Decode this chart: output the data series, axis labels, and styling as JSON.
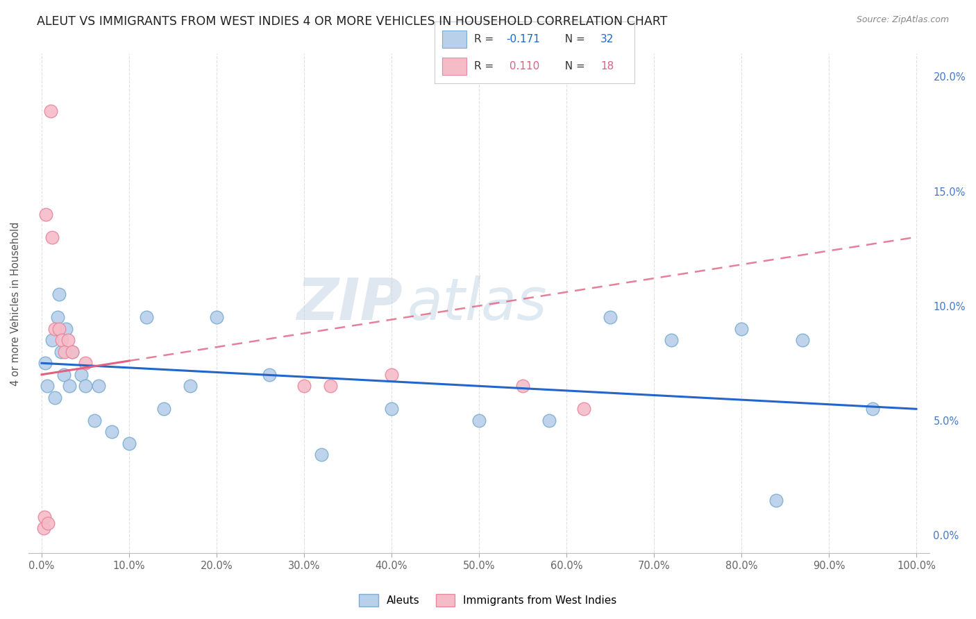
{
  "title": "ALEUT VS IMMIGRANTS FROM WEST INDIES 4 OR MORE VEHICLES IN HOUSEHOLD CORRELATION CHART",
  "source": "Source: ZipAtlas.com",
  "ylabel": "4 or more Vehicles in Household",
  "xlim": [
    0,
    100
  ],
  "ylim": [
    0,
    20
  ],
  "xticks": [
    0,
    10,
    20,
    30,
    40,
    50,
    60,
    70,
    80,
    90,
    100
  ],
  "yticks": [
    0,
    5,
    10,
    15,
    20
  ],
  "aleuts_x": [
    0.4,
    0.6,
    1.2,
    1.5,
    1.8,
    2.0,
    2.2,
    2.5,
    2.8,
    3.2,
    3.5,
    4.5,
    5.0,
    6.0,
    6.5,
    8.0,
    10.0,
    12.0,
    14.0,
    17.0,
    20.0,
    26.0,
    32.0,
    40.0,
    50.0,
    58.0,
    65.0,
    72.0,
    80.0,
    84.0,
    87.0,
    95.0
  ],
  "aleuts_y": [
    7.5,
    6.5,
    8.5,
    6.0,
    9.5,
    10.5,
    8.0,
    7.0,
    9.0,
    6.5,
    8.0,
    7.0,
    6.5,
    5.0,
    6.5,
    4.5,
    4.0,
    9.5,
    5.5,
    6.5,
    9.5,
    7.0,
    3.5,
    5.5,
    5.0,
    5.0,
    9.5,
    8.5,
    9.0,
    1.5,
    8.5,
    5.5
  ],
  "immigrants_x": [
    0.2,
    0.3,
    0.5,
    0.7,
    1.0,
    1.2,
    1.5,
    2.0,
    2.3,
    2.6,
    3.0,
    3.5,
    5.0,
    30.0,
    33.0,
    40.0,
    55.0,
    62.0
  ],
  "immigrants_y": [
    0.3,
    0.8,
    14.0,
    0.5,
    18.5,
    13.0,
    9.0,
    9.0,
    8.5,
    8.0,
    8.5,
    8.0,
    7.5,
    6.5,
    6.5,
    7.0,
    6.5,
    5.5
  ],
  "aleut_color": "#b8d0ea",
  "aleut_edge": "#7aaed0",
  "immigrant_color": "#f5bcc8",
  "immigrant_edge": "#e888a0",
  "aleut_line_color": "#2266cc",
  "immigrant_line_color": "#e06080",
  "aleut_line_x0": 0,
  "aleut_line_y0": 7.5,
  "aleut_line_x1": 100,
  "aleut_line_y1": 5.5,
  "imm_solid_x0": 0,
  "imm_solid_y0": 7.0,
  "imm_solid_x1": 10,
  "imm_solid_y1": 7.6,
  "imm_dash_x0": 10,
  "imm_dash_y0": 7.6,
  "imm_dash_x1": 100,
  "imm_dash_y1": 13.0,
  "R_aleut": -0.171,
  "N_aleut": 32,
  "R_immigrant": 0.11,
  "N_immigrant": 18,
  "legend_label_aleut": "Aleuts",
  "legend_label_immigrant": "Immigrants from West Indies",
  "watermark_zip": "ZIP",
  "watermark_atlas": "atlas",
  "background_color": "#ffffff",
  "grid_color": "#dddddd",
  "title_color": "#222222",
  "source_color": "#888888",
  "ylabel_color": "#555555",
  "xtick_color": "#666666",
  "ytick_color": "#4477cc"
}
